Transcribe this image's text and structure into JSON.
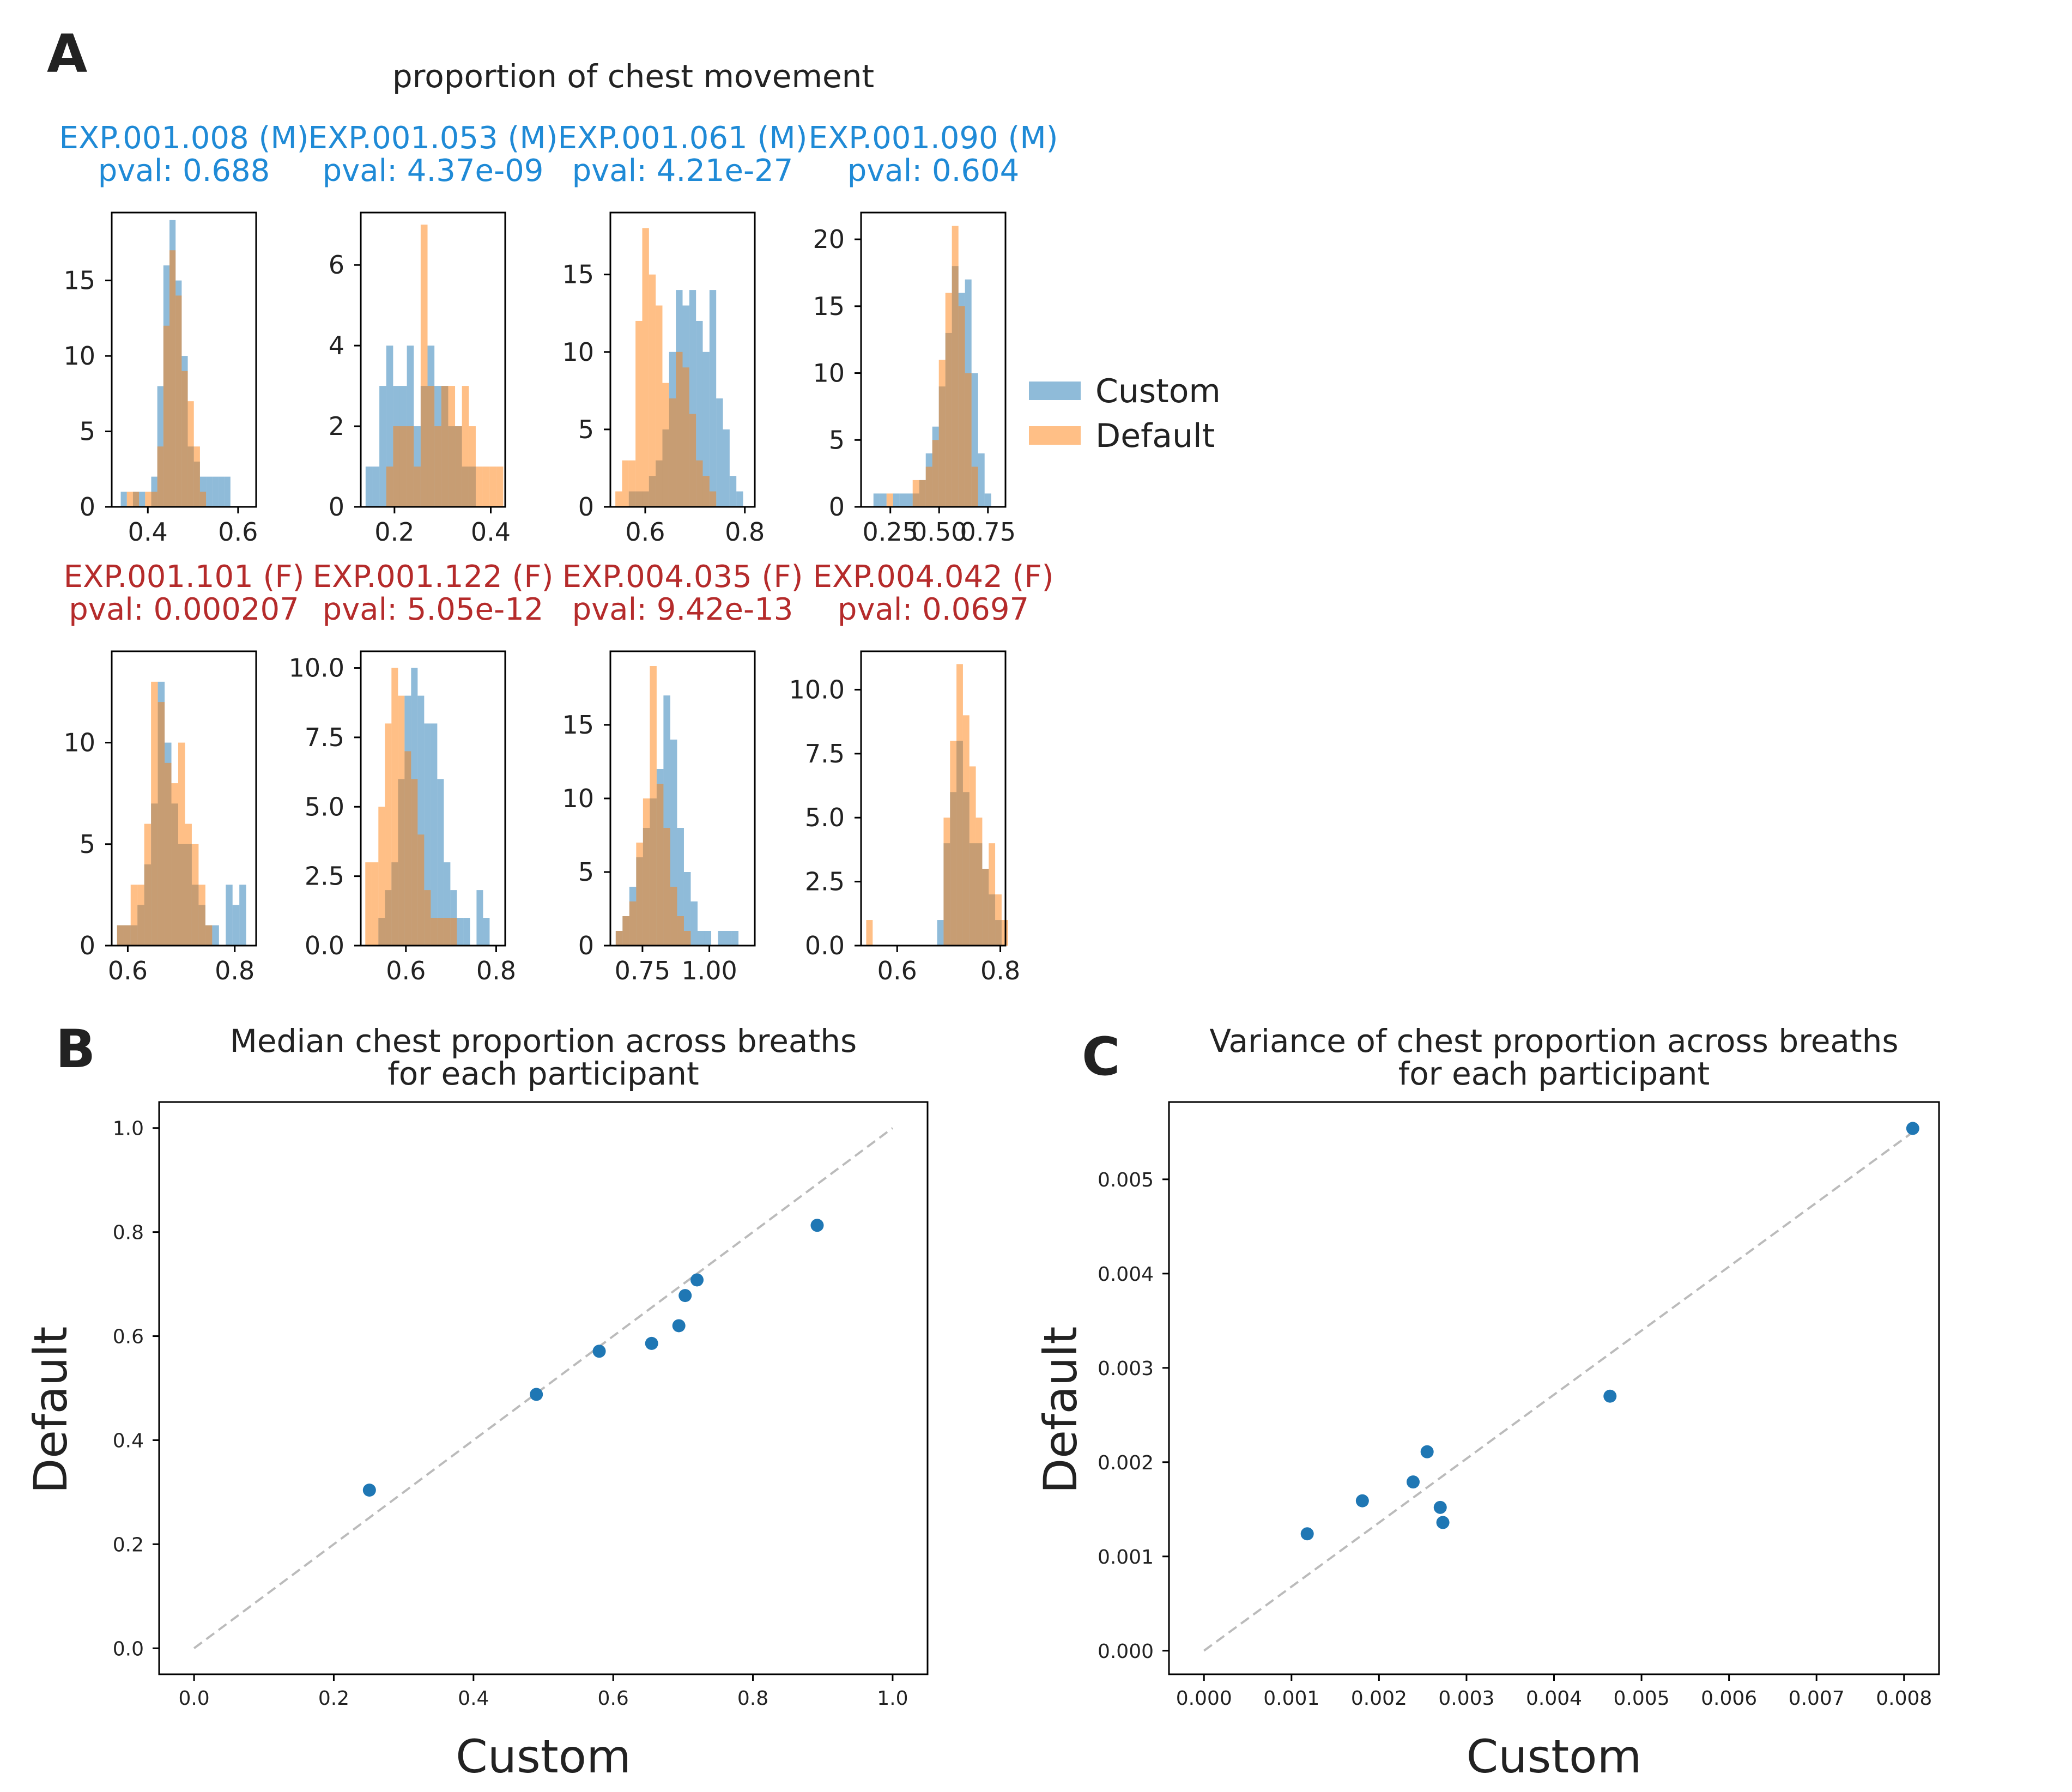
{
  "panel_labels": [
    "A",
    "B",
    "C"
  ],
  "colors": {
    "custom": "#1f77b4",
    "default": "#ff7f0e",
    "male_title": "#1f8ad6",
    "female_title": "#b52b2b",
    "diagonal": "#bbbbbb"
  },
  "chart_data": [
    {
      "type": "histogram-grid",
      "suptitle": "proportion of chest movement",
      "legend": {
        "entries": [
          "Custom",
          "Default"
        ],
        "position": "right"
      },
      "subplots": [
        {
          "name": "EXP.001.008 (M)",
          "pval": "pval: 0.688",
          "sex": "M",
          "xlim": [
            0.32,
            0.64
          ],
          "ylim": [
            0,
            19.5
          ],
          "xticks": [
            0.4,
            0.6
          ],
          "xticklabels": [
            "0.4",
            "0.6"
          ],
          "yticks": [
            0,
            5,
            10,
            15
          ],
          "yticklabels": [
            "0",
            "5",
            "10",
            "15"
          ],
          "custom": {
            "x0": 0.34,
            "binw": 0.0135,
            "counts": [
              1,
              0,
              1,
              1,
              0,
              2,
              8,
              16,
              19,
              15,
              10,
              4,
              3,
              2,
              2,
              2,
              2,
              2
            ]
          },
          "default": {
            "x0": 0.34,
            "binw": 0.0135,
            "counts": [
              0,
              1,
              1,
              0,
              1,
              1,
              4,
              12,
              17,
              14,
              9,
              7,
              4,
              1,
              0,
              0,
              0,
              0
            ]
          }
        },
        {
          "name": "EXP.001.053 (M)",
          "pval": "pval: 4.37e-09",
          "sex": "M",
          "xlim": [
            0.13,
            0.43
          ],
          "ylim": [
            0,
            7.3
          ],
          "xticks": [
            0.2,
            0.4
          ],
          "xticklabels": [
            "0.2",
            "0.4"
          ],
          "yticks": [
            0,
            2,
            4,
            6
          ],
          "yticklabels": [
            "0",
            "2",
            "4",
            "6"
          ],
          "custom": {
            "x0": 0.14,
            "binw": 0.0143,
            "counts": [
              1,
              1,
              3,
              4,
              3,
              3,
              4,
              2,
              3,
              4,
              3,
              3,
              2,
              2,
              1,
              1,
              0,
              0,
              0,
              0
            ]
          },
          "default": {
            "x0": 0.14,
            "binw": 0.0143,
            "counts": [
              0,
              0,
              0,
              1,
              2,
              2,
              2,
              1,
              7,
              3,
              2,
              3,
              3,
              2,
              3,
              2,
              1,
              1,
              1,
              1
            ]
          }
        },
        {
          "name": "EXP.001.061 (M)",
          "pval": "pval: 4.21e-27",
          "sex": "M",
          "xlim": [
            0.53,
            0.82
          ],
          "ylim": [
            0,
            19
          ],
          "xticks": [
            0.6,
            0.8
          ],
          "xticklabels": [
            "0.6",
            "0.8"
          ],
          "yticks": [
            0,
            5,
            10,
            15
          ],
          "yticklabels": [
            "0",
            "5",
            "10",
            "15"
          ],
          "custom": {
            "x0": 0.54,
            "binw": 0.0135,
            "counts": [
              0,
              0,
              1,
              1,
              1,
              2,
              3,
              5,
              10,
              14,
              13,
              14,
              12,
              10,
              14,
              7,
              5,
              2,
              1,
              0
            ]
          },
          "default": {
            "x0": 0.54,
            "binw": 0.0135,
            "counts": [
              1,
              3,
              3,
              12,
              18,
              15,
              13,
              8,
              7,
              10,
              9,
              6,
              3,
              2,
              1,
              0,
              0,
              0,
              0,
              0
            ]
          }
        },
        {
          "name": "EXP.001.090 (M)",
          "pval": "pval: 0.604",
          "sex": "M",
          "xlim": [
            0.1,
            0.84
          ],
          "ylim": [
            0,
            22
          ],
          "xticks": [
            0.25,
            0.5,
            0.75
          ],
          "xticklabels": [
            "0.25",
            "0.50",
            "0.75"
          ],
          "yticks": [
            0,
            5,
            10,
            15,
            20
          ],
          "yticklabels": [
            "0",
            "5",
            "10",
            "15",
            "20"
          ],
          "custom": {
            "x0": 0.13,
            "binw": 0.0335,
            "counts": [
              0,
              1,
              1,
              0,
              1,
              1,
              1,
              1,
              2,
              4,
              6,
              9,
              13,
              18,
              16,
              17,
              10,
              4,
              1,
              0
            ]
          },
          "default": {
            "x0": 0.13,
            "binw": 0.0335,
            "counts": [
              0,
              0,
              0,
              1,
              0,
              0,
              0,
              2,
              2,
              3,
              5,
              11,
              16,
              21,
              15,
              10,
              3,
              0,
              0,
              0
            ]
          }
        },
        {
          "name": "EXP.001.101 (F)",
          "pval": "pval: 0.000207",
          "sex": "F",
          "xlim": [
            0.57,
            0.84
          ],
          "ylim": [
            0,
            14.5
          ],
          "xticks": [
            0.6,
            0.8
          ],
          "xticklabels": [
            "0.6",
            "0.8"
          ],
          "yticks": [
            0,
            5,
            10
          ],
          "yticklabels": [
            "0",
            "5",
            "10"
          ],
          "custom": {
            "x0": 0.58,
            "binw": 0.0127,
            "counts": [
              1,
              1,
              1,
              2,
              4,
              7,
              13,
              10,
              7,
              5,
              5,
              3,
              2,
              1,
              1,
              0,
              3,
              2,
              3,
              0
            ]
          },
          "default": {
            "x0": 0.58,
            "binw": 0.0127,
            "counts": [
              1,
              1,
              3,
              3,
              6,
              13,
              12,
              9,
              8,
              10,
              6,
              5,
              3,
              1,
              0,
              0,
              0,
              0,
              0,
              0
            ]
          }
        },
        {
          "name": "EXP.001.122 (F)",
          "pval": "pval: 5.05e-12",
          "sex": "F",
          "xlim": [
            0.5,
            0.82
          ],
          "ylim": [
            0,
            10.6
          ],
          "xticks": [
            0.6,
            0.8
          ],
          "xticklabels": [
            "0.6",
            "0.8"
          ],
          "yticks": [
            0.0,
            2.5,
            5.0,
            7.5,
            10.0
          ],
          "yticklabels": [
            "0.0",
            "2.5",
            "5.0",
            "7.5",
            "10.0"
          ],
          "custom": {
            "x0": 0.51,
            "binw": 0.0145,
            "counts": [
              0,
              0,
              1,
              2,
              3,
              6,
              9,
              10,
              9,
              8,
              8,
              6,
              3,
              2,
              1,
              1,
              0,
              2,
              1,
              0
            ]
          },
          "default": {
            "x0": 0.51,
            "binw": 0.0145,
            "counts": [
              3,
              3,
              5,
              8,
              10,
              9,
              7,
              6,
              4,
              2,
              1,
              1,
              1,
              1,
              0,
              0,
              0,
              0,
              0,
              0
            ]
          }
        },
        {
          "name": "EXP.004.035 (F)",
          "pval": "pval: 9.42e-13",
          "sex": "F",
          "xlim": [
            0.63,
            1.17
          ],
          "ylim": [
            0,
            20
          ],
          "xticks": [
            0.75,
            1.0
          ],
          "xticklabels": [
            "0.75",
            "1.00"
          ],
          "yticks": [
            0,
            5,
            10,
            15
          ],
          "yticklabels": [
            "0",
            "5",
            "10",
            "15"
          ],
          "custom": {
            "x0": 0.65,
            "binw": 0.0255,
            "counts": [
              1,
              2,
              4,
              6,
              8,
              10,
              12,
              17,
              14,
              8,
              5,
              3,
              1,
              1,
              0,
              1,
              1,
              1,
              0,
              0
            ]
          },
          "default": {
            "x0": 0.65,
            "binw": 0.0255,
            "counts": [
              1,
              2,
              3,
              7,
              10,
              19,
              11,
              8,
              4,
              2,
              1,
              0,
              0,
              0,
              0,
              0,
              0,
              0,
              0,
              0
            ]
          }
        },
        {
          "name": "EXP.004.042 (F)",
          "pval": "pval: 0.0697",
          "sex": "F",
          "xlim": [
            0.53,
            0.81
          ],
          "ylim": [
            0,
            11.5
          ],
          "xticks": [
            0.6,
            0.8
          ],
          "xticklabels": [
            "0.6",
            "0.8"
          ],
          "yticks": [
            0.0,
            2.5,
            5.0,
            7.5,
            10.0
          ],
          "yticklabels": [
            "0.0",
            "2.5",
            "5.0",
            "7.5",
            "10.0"
          ],
          "custom": {
            "x0": 0.54,
            "binw": 0.0125,
            "counts": [
              0,
              0,
              0,
              0,
              0,
              0,
              0,
              0,
              0,
              0,
              0,
              1,
              4,
              6,
              8,
              6,
              4,
              4,
              3,
              2,
              1,
              0
            ]
          },
          "default": {
            "x0": 0.54,
            "binw": 0.0125,
            "counts": [
              1,
              0,
              0,
              0,
              0,
              0,
              0,
              0,
              0,
              0,
              0,
              0,
              5,
              8,
              11,
              9,
              7,
              5,
              3,
              4,
              2,
              1
            ]
          }
        }
      ]
    },
    {
      "type": "scatter",
      "title": [
        "Median chest proportion across breaths",
        "for each participant"
      ],
      "xlabel": "Custom",
      "ylabel": "Default",
      "xlim": [
        -0.05,
        1.05
      ],
      "ylim": [
        -0.05,
        1.05
      ],
      "xticks": [
        0.0,
        0.2,
        0.4,
        0.6,
        0.8,
        1.0
      ],
      "xticklabels": [
        "0.0",
        "0.2",
        "0.4",
        "0.6",
        "0.8",
        "1.0"
      ],
      "yticks": [
        0.0,
        0.2,
        0.4,
        0.6,
        0.8,
        1.0
      ],
      "yticklabels": [
        "0.0",
        "0.2",
        "0.4",
        "0.6",
        "0.8",
        "1.0"
      ],
      "diagonal": [
        [
          0,
          0
        ],
        [
          1,
          1
        ]
      ],
      "points": [
        [
          0.251,
          0.304
        ],
        [
          0.49,
          0.488
        ],
        [
          0.58,
          0.571
        ],
        [
          0.655,
          0.586
        ],
        [
          0.694,
          0.62
        ],
        [
          0.703,
          0.678
        ],
        [
          0.72,
          0.708
        ],
        [
          0.892,
          0.813
        ]
      ]
    },
    {
      "type": "scatter",
      "title": [
        "Variance of chest proportion across breaths",
        "for each participant"
      ],
      "xlabel": "Custom",
      "ylabel": "Default",
      "xlim": [
        -0.0004,
        0.0084
      ],
      "ylim": [
        -0.00025,
        0.00582
      ],
      "xticks": [
        0,
        0.001,
        0.002,
        0.003,
        0.004,
        0.005,
        0.006,
        0.007,
        0.008
      ],
      "xticklabels": [
        "0.000",
        "0.001",
        "0.002",
        "0.003",
        "0.004",
        "0.005",
        "0.006",
        "0.007",
        "0.008"
      ],
      "yticks": [
        0,
        0.001,
        0.002,
        0.003,
        0.004,
        0.005
      ],
      "yticklabels": [
        "0.000",
        "0.001",
        "0.002",
        "0.003",
        "0.004",
        "0.005"
      ],
      "diagonal": [
        [
          0,
          0
        ],
        [
          0.0081,
          0.0055
        ]
      ],
      "points": [
        [
          0.00118,
          0.00124
        ],
        [
          0.00181,
          0.00159
        ],
        [
          0.00239,
          0.00179
        ],
        [
          0.00255,
          0.00211
        ],
        [
          0.0027,
          0.00152
        ],
        [
          0.00273,
          0.00136
        ],
        [
          0.00464,
          0.0027
        ],
        [
          0.0081,
          0.00554
        ]
      ]
    }
  ]
}
